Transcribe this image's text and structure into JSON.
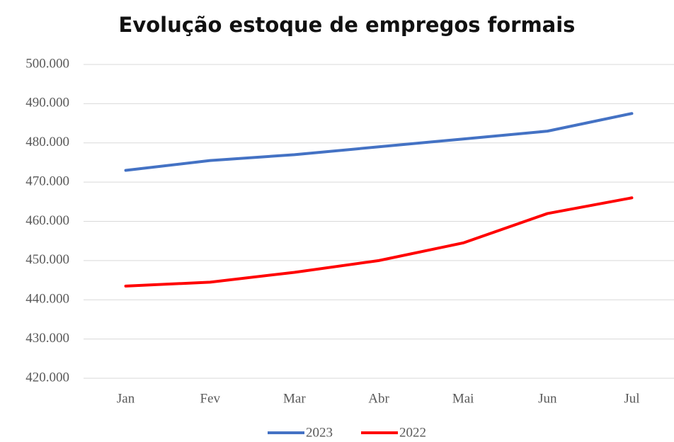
{
  "chart_data": {
    "type": "line",
    "title": "Evolução estoque de empregos formais",
    "categories": [
      "Jan",
      "Fev",
      "Mar",
      "Abr",
      "Mai",
      "Jun",
      "Jul"
    ],
    "series": [
      {
        "name": "2023",
        "color": "#4472c4",
        "values": [
          473000,
          475500,
          477000,
          479000,
          481000,
          483000,
          487500
        ]
      },
      {
        "name": "2022",
        "color": "#ff0000",
        "values": [
          443500,
          444500,
          447000,
          450000,
          454500,
          462000,
          466000
        ]
      }
    ],
    "ylim": [
      420000,
      500000
    ],
    "yticks": [
      {
        "value": 420000,
        "label": "420.000"
      },
      {
        "value": 430000,
        "label": "430.000"
      },
      {
        "value": 440000,
        "label": "440.000"
      },
      {
        "value": 450000,
        "label": "450.000"
      },
      {
        "value": 460000,
        "label": "460.000"
      },
      {
        "value": 470000,
        "label": "470.000"
      },
      {
        "value": 480000,
        "label": "480.000"
      },
      {
        "value": 490000,
        "label": "490.000"
      },
      {
        "value": 500000,
        "label": "500.000"
      }
    ],
    "grid": true,
    "legend": "bottom"
  }
}
